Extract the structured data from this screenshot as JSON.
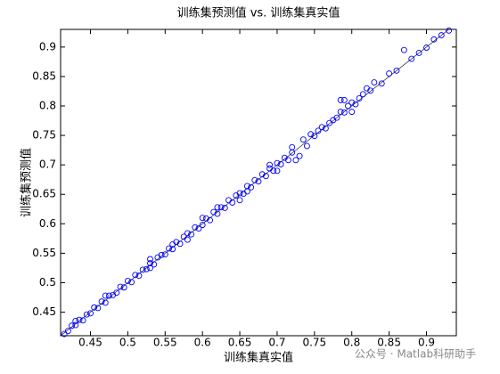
{
  "chart_data": {
    "type": "scatter",
    "title": "训练集预测值 vs. 训练集真实值",
    "x_label": "训练集真实值",
    "y_label": "训练集预测值",
    "watermark": "公众号 · Matlab科研助手",
    "series": [
      {
        "name": "训练集",
        "color": "#0000ff",
        "x": [
          0.415,
          0.42,
          0.425,
          0.43,
          0.435,
          0.44,
          0.445,
          0.45,
          0.455,
          0.46,
          0.465,
          0.47,
          0.475,
          0.48,
          0.485,
          0.49,
          0.495,
          0.5,
          0.505,
          0.51,
          0.515,
          0.52,
          0.525,
          0.53,
          0.535,
          0.54,
          0.545,
          0.55,
          0.555,
          0.56,
          0.565,
          0.57,
          0.575,
          0.58,
          0.585,
          0.59,
          0.595,
          0.6,
          0.605,
          0.61,
          0.615,
          0.62,
          0.625,
          0.63,
          0.635,
          0.64,
          0.645,
          0.65,
          0.655,
          0.66,
          0.665,
          0.67,
          0.675,
          0.68,
          0.685,
          0.69,
          0.695,
          0.7,
          0.705,
          0.71,
          0.715,
          0.72,
          0.73,
          0.725,
          0.735,
          0.74,
          0.745,
          0.75,
          0.755,
          0.76,
          0.765,
          0.77,
          0.775,
          0.78,
          0.785,
          0.79,
          0.795,
          0.8,
          0.805,
          0.81,
          0.815,
          0.82,
          0.825,
          0.83,
          0.84,
          0.85,
          0.86,
          0.87,
          0.88,
          0.89,
          0.9,
          0.91,
          0.92,
          0.93,
          0.47,
          0.53,
          0.58,
          0.62,
          0.66,
          0.69,
          0.7,
          0.72,
          0.79,
          0.8,
          0.53,
          0.6,
          0.65,
          0.43,
          0.56,
          0.785
        ],
        "y": [
          0.413,
          0.418,
          0.427,
          0.428,
          0.437,
          0.436,
          0.446,
          0.448,
          0.458,
          0.457,
          0.468,
          0.466,
          0.478,
          0.479,
          0.483,
          0.493,
          0.492,
          0.503,
          0.501,
          0.513,
          0.512,
          0.522,
          0.523,
          0.533,
          0.531,
          0.543,
          0.547,
          0.548,
          0.558,
          0.557,
          0.569,
          0.566,
          0.578,
          0.584,
          0.582,
          0.594,
          0.592,
          0.598,
          0.609,
          0.606,
          0.62,
          0.617,
          0.628,
          0.627,
          0.64,
          0.636,
          0.648,
          0.652,
          0.651,
          0.664,
          0.662,
          0.674,
          0.672,
          0.684,
          0.681,
          0.694,
          0.69,
          0.703,
          0.701,
          0.712,
          0.708,
          0.721,
          0.715,
          0.708,
          0.743,
          0.732,
          0.752,
          0.749,
          0.758,
          0.764,
          0.762,
          0.771,
          0.776,
          0.78,
          0.79,
          0.789,
          0.8,
          0.806,
          0.803,
          0.813,
          0.82,
          0.83,
          0.826,
          0.84,
          0.838,
          0.855,
          0.86,
          0.895,
          0.88,
          0.89,
          0.899,
          0.913,
          0.92,
          0.928,
          0.478,
          0.525,
          0.573,
          0.628,
          0.655,
          0.7,
          0.69,
          0.73,
          0.81,
          0.79,
          0.54,
          0.61,
          0.64,
          0.435,
          0.565,
          0.81
        ]
      }
    ],
    "xlim": [
      0.41,
      0.94
    ],
    "ylim": [
      0.41,
      0.93
    ],
    "xticks": [
      0.45,
      0.5,
      0.55,
      0.6,
      0.65,
      0.7,
      0.75,
      0.8,
      0.85,
      0.9
    ],
    "yticks": [
      0.45,
      0.5,
      0.55,
      0.6,
      0.65,
      0.7,
      0.75,
      0.8,
      0.85,
      0.9
    ],
    "grid": false
  }
}
